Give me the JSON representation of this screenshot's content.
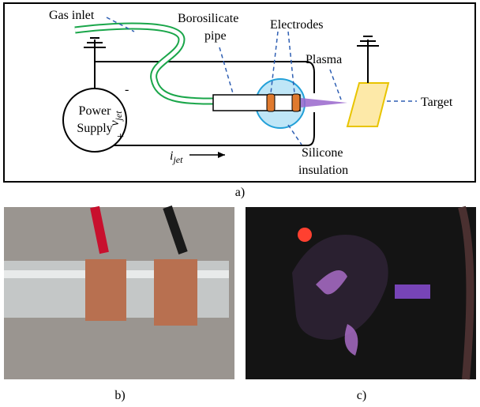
{
  "diagram": {
    "labels": {
      "gas_inlet": "Gas inlet",
      "borosilicate": [
        "Borosilicate",
        "pipe"
      ],
      "electrodes": "Electrodes",
      "plasma": "Plasma",
      "target": "Target",
      "power_supply": [
        "Power",
        "Supply"
      ],
      "voltage": {
        "symbol": "v",
        "subscript": "jet"
      },
      "minus": "-",
      "plus": "+",
      "current": {
        "symbol": "i",
        "subscript": "jet"
      },
      "silicone": [
        "Silicone",
        "insulation"
      ]
    },
    "caption": "a)"
  },
  "photos": [
    {
      "caption": "b)"
    },
    {
      "caption": "c)"
    }
  ]
}
